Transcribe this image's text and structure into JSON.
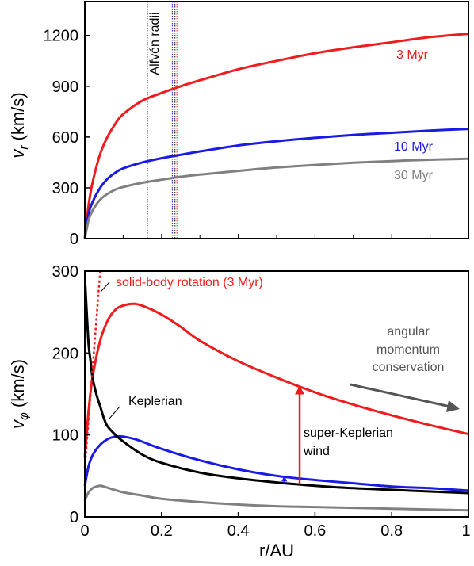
{
  "chart_data": [
    {
      "type": "line",
      "panel": "top",
      "ylabel_var": "v",
      "ylabel_sub": "r",
      "ylabel_units": " (km/s)",
      "xlim": [
        0,
        1
      ],
      "ylim": [
        0,
        1400
      ],
      "yticks": [
        "0",
        "300",
        "600",
        "900",
        "1200"
      ],
      "ytick_values": [
        0,
        300,
        600,
        900,
        1200
      ],
      "series": [
        {
          "name": "3 Myr",
          "color": "#ee1c1c",
          "x": [
            0,
            0.01,
            0.02,
            0.04,
            0.06,
            0.08,
            0.1,
            0.15,
            0.2,
            0.25,
            0.3,
            0.4,
            0.5,
            0.6,
            0.7,
            0.8,
            0.9,
            1.0
          ],
          "y": [
            0,
            200,
            330,
            500,
            605,
            680,
            735,
            815,
            860,
            900,
            935,
            1000,
            1050,
            1095,
            1130,
            1160,
            1190,
            1210
          ]
        },
        {
          "name": "10 Myr",
          "color": "#1a1ae6",
          "x": [
            0,
            0.01,
            0.02,
            0.04,
            0.06,
            0.08,
            0.1,
            0.15,
            0.2,
            0.25,
            0.3,
            0.4,
            0.5,
            0.6,
            0.7,
            0.8,
            0.9,
            1.0
          ],
          "y": [
            0,
            145,
            215,
            300,
            355,
            390,
            415,
            450,
            475,
            495,
            515,
            550,
            575,
            595,
            612,
            625,
            638,
            648
          ]
        },
        {
          "name": "30 Myr",
          "color": "#808080",
          "x": [
            0,
            0.01,
            0.02,
            0.04,
            0.06,
            0.08,
            0.1,
            0.15,
            0.2,
            0.25,
            0.3,
            0.4,
            0.5,
            0.6,
            0.7,
            0.8,
            0.9,
            1.0
          ],
          "y": [
            0,
            110,
            165,
            230,
            265,
            290,
            305,
            330,
            348,
            365,
            378,
            400,
            420,
            435,
            448,
            458,
            466,
            472
          ]
        }
      ],
      "vlines": [
        {
          "x": 0.163,
          "color": "#000000"
        },
        {
          "x": 0.228,
          "color": "#1a1ae6"
        },
        {
          "x": 0.235,
          "color": "#000000"
        },
        {
          "x": 0.24,
          "color": "#ee1c1c"
        }
      ],
      "annotations": [
        {
          "text": "Alfvén radii",
          "color": "#000000",
          "rotate": true
        },
        {
          "text": "3 Myr",
          "color": "#ee1c1c"
        },
        {
          "text": "10 Myr",
          "color": "#1a1ae6"
        },
        {
          "text": "30 Myr",
          "color": "#808080"
        }
      ]
    },
    {
      "type": "line",
      "panel": "bottom",
      "ylabel_var": "v",
      "ylabel_sub": "φ",
      "ylabel_units": " (km/s)",
      "xlabel": "r/AU",
      "xlim": [
        0,
        1
      ],
      "ylim": [
        0,
        300
      ],
      "xticks": [
        "0",
        "0.2",
        "0.4",
        "0.6",
        "0.8",
        "1"
      ],
      "xtick_values": [
        0,
        0.2,
        0.4,
        0.6,
        0.8,
        1
      ],
      "yticks": [
        "0",
        "100",
        "200",
        "300"
      ],
      "ytick_values": [
        0,
        100,
        200,
        300
      ],
      "series": [
        {
          "name": "3 Myr",
          "color": "#ee1c1c",
          "x": [
            0,
            0.01,
            0.02,
            0.04,
            0.06,
            0.08,
            0.1,
            0.13,
            0.16,
            0.2,
            0.25,
            0.3,
            0.4,
            0.5,
            0.6,
            0.7,
            0.8,
            0.9,
            1.0
          ],
          "y": [
            73,
            130,
            170,
            215,
            240,
            253,
            258,
            260,
            256,
            247,
            232,
            215,
            190,
            170,
            152,
            137,
            124,
            112,
            101
          ]
        },
        {
          "name": "10 Myr",
          "color": "#1a1ae6",
          "x": [
            0,
            0.01,
            0.02,
            0.04,
            0.06,
            0.08,
            0.1,
            0.13,
            0.16,
            0.2,
            0.3,
            0.4,
            0.5,
            0.6,
            0.7,
            0.8,
            0.9,
            1.0
          ],
          "y": [
            38,
            62,
            75,
            88,
            95,
            98,
            98,
            95,
            90,
            83,
            69,
            58,
            50,
            45,
            41,
            37,
            35,
            32
          ]
        },
        {
          "name": "30 Myr",
          "color": "#808080",
          "x": [
            0,
            0.01,
            0.02,
            0.03,
            0.04,
            0.05,
            0.07,
            0.1,
            0.15,
            0.2,
            0.3,
            0.4,
            0.5,
            0.6,
            0.7,
            0.8,
            0.9,
            1.0
          ],
          "y": [
            20,
            30,
            35,
            37,
            38,
            37,
            34,
            30,
            26,
            22,
            18,
            15,
            13,
            12,
            11,
            10,
            9,
            8
          ]
        },
        {
          "name": "Keplerian",
          "color": "#000000",
          "x": [
            0.001,
            0.005,
            0.01,
            0.015,
            0.02,
            0.03,
            0.04,
            0.05,
            0.06,
            0.08,
            0.1,
            0.15,
            0.2,
            0.3,
            0.4,
            0.5,
            0.6,
            0.7,
            0.8,
            0.9,
            1.0
          ],
          "y": [
            285,
            250,
            210,
            190,
            170,
            150,
            135,
            120,
            110,
            100,
            92,
            76,
            66,
            54,
            47,
            42,
            38,
            35,
            33,
            31,
            29
          ]
        },
        {
          "name": "solid-body rotation (3 Myr)",
          "color": "#ee1c1c",
          "dashed": true,
          "x": [
            0,
            0.02,
            0.04
          ],
          "y": [
            60,
            180,
            300
          ]
        }
      ],
      "annotations": [
        {
          "text": "solid-body rotation (3 Myr)",
          "color": "#ee1c1c"
        },
        {
          "text": "Keplerian",
          "color": "#000000"
        },
        {
          "text": "angular",
          "color": "#555555"
        },
        {
          "text": "momentum",
          "color": "#555555"
        },
        {
          "text": "conservation",
          "color": "#555555"
        },
        {
          "text": "super-Keplerian",
          "color": "#000000"
        },
        {
          "text": "wind",
          "color": "#000000"
        }
      ]
    }
  ]
}
